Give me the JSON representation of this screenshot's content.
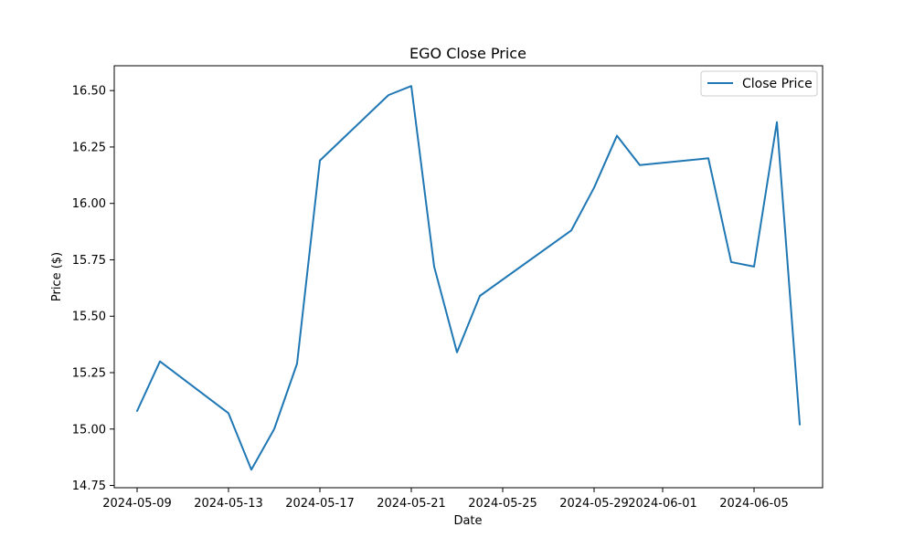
{
  "chart_data": {
    "type": "line",
    "title": "EGO Close Price",
    "xlabel": "Date",
    "ylabel": "Price ($)",
    "x": [
      "2024-05-09",
      "2024-05-10",
      "2024-05-13",
      "2024-05-14",
      "2024-05-15",
      "2024-05-16",
      "2024-05-17",
      "2024-05-20",
      "2024-05-21",
      "2024-05-22",
      "2024-05-23",
      "2024-05-24",
      "2024-05-28",
      "2024-05-29",
      "2024-05-30",
      "2024-05-31",
      "2024-06-03",
      "2024-06-04",
      "2024-06-05",
      "2024-06-06",
      "2024-06-07"
    ],
    "series": [
      {
        "name": "Close Price",
        "values": [
          15.08,
          15.3,
          15.07,
          14.82,
          15.0,
          15.29,
          16.19,
          16.48,
          16.52,
          15.72,
          15.34,
          15.59,
          15.88,
          16.07,
          16.3,
          16.17,
          16.2,
          15.74,
          15.72,
          16.36,
          15.02
        ],
        "color": "#1f77b4"
      }
    ],
    "x_ticks": [
      "2024-05-09",
      "2024-05-13",
      "2024-05-17",
      "2024-05-21",
      "2024-05-25",
      "2024-05-29",
      "2024-06-01",
      "2024-06-05"
    ],
    "y_ticks": [
      "14.75",
      "15.00",
      "15.25",
      "15.50",
      "15.75",
      "16.00",
      "16.25",
      "16.50"
    ],
    "xlim": [
      "2024-05-08",
      "2024-06-08"
    ],
    "ylim": [
      14.74,
      16.61
    ],
    "grid": false,
    "legend_position": "top-right"
  }
}
